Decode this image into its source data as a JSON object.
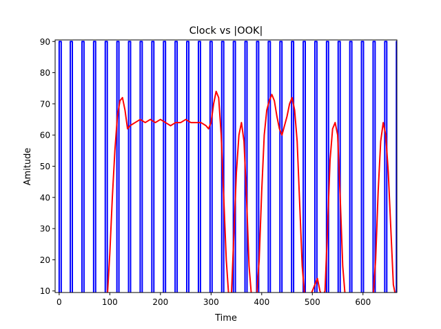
{
  "chart_data": {
    "type": "line",
    "title": "Clock vs |OOK|",
    "xlabel": "Time",
    "ylabel": "Amitude",
    "xlim": [
      -8,
      667
    ],
    "ylim": [
      9.5,
      90.5
    ],
    "x_ticks": [
      0,
      100,
      200,
      300,
      400,
      500,
      600
    ],
    "y_ticks": [
      10,
      20,
      30,
      40,
      50,
      60,
      70,
      80,
      90
    ],
    "grid": false,
    "legend": "none",
    "series": [
      {
        "color": "#0000ff",
        "kind": "clock_square_wave",
        "high": 90,
        "low": 0,
        "rising_edges": [
          0,
          22,
          45,
          68,
          91,
          114,
          137,
          160,
          183,
          206,
          229,
          252,
          275,
          298,
          321,
          344,
          367,
          390,
          413,
          436,
          459,
          482,
          505,
          528,
          551,
          574,
          597,
          620,
          643,
          666
        ],
        "high_width": 4
      },
      {
        "color": "#ff0000",
        "kind": "ook_envelope",
        "x": [
          95,
          100,
          105,
          110,
          115,
          120,
          125,
          130,
          135,
          140,
          150,
          160,
          170,
          180,
          190,
          200,
          210,
          220,
          230,
          240,
          250,
          260,
          270,
          280,
          290,
          295,
          300,
          305,
          310,
          315,
          320,
          325,
          330,
          335,
          340,
          345,
          350,
          355,
          360,
          365,
          370,
          375,
          380,
          385,
          390,
          395,
          400,
          405,
          410,
          415,
          420,
          425,
          430,
          435,
          440,
          445,
          450,
          455,
          460,
          465,
          470,
          475,
          480,
          485,
          490,
          495,
          500,
          505,
          510,
          515,
          520,
          525,
          530,
          535,
          540,
          545,
          550,
          555,
          560,
          565,
          570,
          575,
          580,
          590,
          600,
          610,
          620,
          625,
          630,
          635,
          640,
          645,
          650,
          655,
          660,
          665
        ],
        "y": [
          8,
          22,
          40,
          55,
          66,
          71,
          72,
          68,
          62,
          63,
          64,
          65,
          64,
          65,
          64,
          65,
          64,
          63,
          64,
          64,
          65,
          64,
          64,
          64,
          63,
          62,
          64,
          70,
          74,
          72,
          60,
          40,
          20,
          8,
          8,
          28,
          48,
          60,
          64,
          58,
          40,
          18,
          8,
          8,
          8,
          20,
          42,
          60,
          68,
          71,
          73,
          71,
          66,
          62,
          60,
          63,
          66,
          70,
          72,
          68,
          58,
          38,
          18,
          8,
          8,
          8,
          10,
          12,
          14,
          10,
          8,
          10,
          30,
          52,
          62,
          64,
          60,
          40,
          18,
          8,
          8,
          8,
          8,
          8,
          8,
          8,
          8,
          20,
          42,
          58,
          64,
          60,
          48,
          30,
          12,
          8
        ]
      }
    ]
  }
}
